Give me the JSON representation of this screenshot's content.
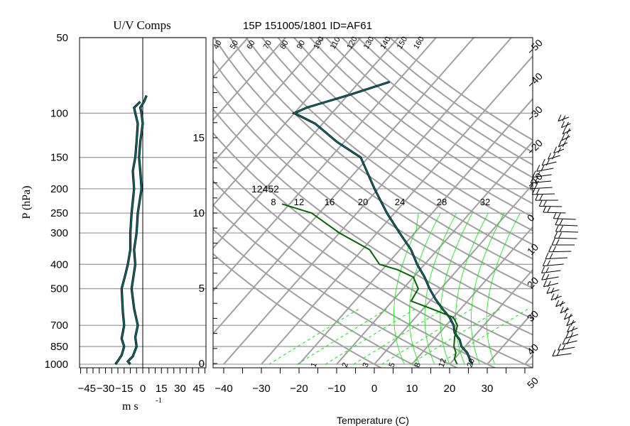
{
  "header": {
    "left_title": "U/V Comps",
    "main_title": "15P 151005/1801 ID=AF61"
  },
  "axes": {
    "pressure_label": "P (hPa)",
    "wind_unit_label": "m s",
    "wind_unit_exponent": "-1",
    "temperature_label": "Temperature (C)"
  },
  "annotations": {
    "height_label": "12452"
  },
  "colors": {
    "grid": "#a0a0a0",
    "temperature": "#000000",
    "dewpoint_parcel": "#006400",
    "wind_component": "#008b8b",
    "moist_adiabat": "#00ee00"
  },
  "chart_data": [
    {
      "type": "line",
      "title": "U/V Comps",
      "xlabel": "m s -1",
      "ylabel": "P (hPa)",
      "xlim": [
        -50,
        50
      ],
      "ylim_pressure_hPa": [
        1000,
        50
      ],
      "x_ticks": [
        -45,
        -30,
        -15,
        0,
        15,
        30,
        45
      ],
      "pressure_ticks": [
        50,
        100,
        150,
        200,
        250,
        300,
        400,
        500,
        700,
        850,
        1000
      ],
      "series": [
        {
          "points": [
            [
              -10,
              1000
            ],
            [
              -12,
              975
            ],
            [
              -8,
              930
            ],
            [
              -5,
              850
            ],
            [
              -6,
              780
            ],
            [
              -4,
              700
            ],
            [
              -7,
              600
            ],
            [
              -9,
              500
            ],
            [
              -7,
              430
            ],
            [
              -6,
              400
            ],
            [
              -7,
              350
            ],
            [
              -5,
              300
            ],
            [
              -4,
              250
            ],
            [
              -1,
              200
            ],
            [
              -2,
              170
            ],
            [
              -3,
              150
            ],
            [
              -2,
              130
            ],
            [
              0,
              110
            ],
            [
              -1,
              100
            ],
            [
              -2,
              95
            ],
            [
              1,
              90
            ],
            [
              3,
              85
            ]
          ]
        },
        {
          "points": [
            [
              -22,
              1000
            ],
            [
              -20,
              970
            ],
            [
              -17,
              920
            ],
            [
              -15,
              850
            ],
            [
              -17,
              790
            ],
            [
              -15,
              700
            ],
            [
              -16,
              620
            ],
            [
              -17,
              500
            ],
            [
              -14,
              440
            ],
            [
              -12,
              400
            ],
            [
              -10,
              350
            ],
            [
              -10,
              300
            ],
            [
              -9,
              250
            ],
            [
              -7,
              200
            ],
            [
              -8,
              170
            ],
            [
              -6,
              150
            ],
            [
              -5,
              130
            ],
            [
              -4,
              110
            ],
            [
              -6,
              100
            ],
            [
              -7,
              95
            ],
            [
              -2,
              90
            ]
          ]
        }
      ]
    },
    {
      "type": "line",
      "title": "15P 151005/1801 ID=AF61",
      "xlabel": "Temperature (C)",
      "xlim": [
        -45,
        42
      ],
      "x_ticks": [
        -40,
        -30,
        -20,
        -10,
        0,
        10,
        20,
        30
      ],
      "height_axis_ticks": [
        0,
        5,
        10,
        15
      ],
      "dry_adiabat_labels": [
        40,
        50,
        60,
        70,
        80,
        90,
        100,
        110,
        120,
        130,
        140,
        150,
        160
      ],
      "isotherm_labels": [
        -50,
        -40,
        -30,
        -20,
        -10,
        0,
        10,
        20,
        30,
        40,
        50
      ],
      "moist_adiabat_labels": [
        8,
        12,
        16,
        20,
        24,
        28,
        32
      ],
      "mixing_ratio_labels": [
        1,
        2,
        3,
        5,
        8,
        12,
        20
      ],
      "series": [
        {
          "points": [
            [
              26,
              1000
            ],
            [
              24,
              950
            ],
            [
              22,
              900
            ],
            [
              19,
              850
            ],
            [
              17,
              800
            ],
            [
              14,
              750
            ],
            [
              12,
              700
            ],
            [
              9,
              650
            ],
            [
              5,
              600
            ],
            [
              1,
              550
            ],
            [
              -3,
              500
            ],
            [
              -7,
              450
            ],
            [
              -12,
              400
            ],
            [
              -17,
              350
            ],
            [
              -24,
              300
            ],
            [
              -32,
              250
            ],
            [
              -41,
              200
            ],
            [
              -52,
              150
            ],
            [
              -62,
              130
            ],
            [
              -72,
              110
            ],
            [
              -80,
              100
            ],
            [
              -78,
              95
            ],
            [
              -70,
              85
            ],
            [
              -62,
              75
            ]
          ]
        },
        {
          "points": [
            [
              22,
              1000
            ],
            [
              20,
              950
            ],
            [
              19,
              900
            ],
            [
              17,
              850
            ],
            [
              15,
              780
            ],
            [
              13,
              700
            ],
            [
              10,
              650
            ],
            [
              2,
              600
            ],
            [
              -5,
              560
            ],
            [
              -6,
              500
            ],
            [
              -10,
              450
            ],
            [
              -16,
              420
            ],
            [
              -22,
              400
            ],
            [
              -28,
              350
            ],
            [
              -40,
              300
            ],
            [
              -52,
              250
            ],
            [
              -62,
              230
            ]
          ]
        }
      ]
    }
  ]
}
